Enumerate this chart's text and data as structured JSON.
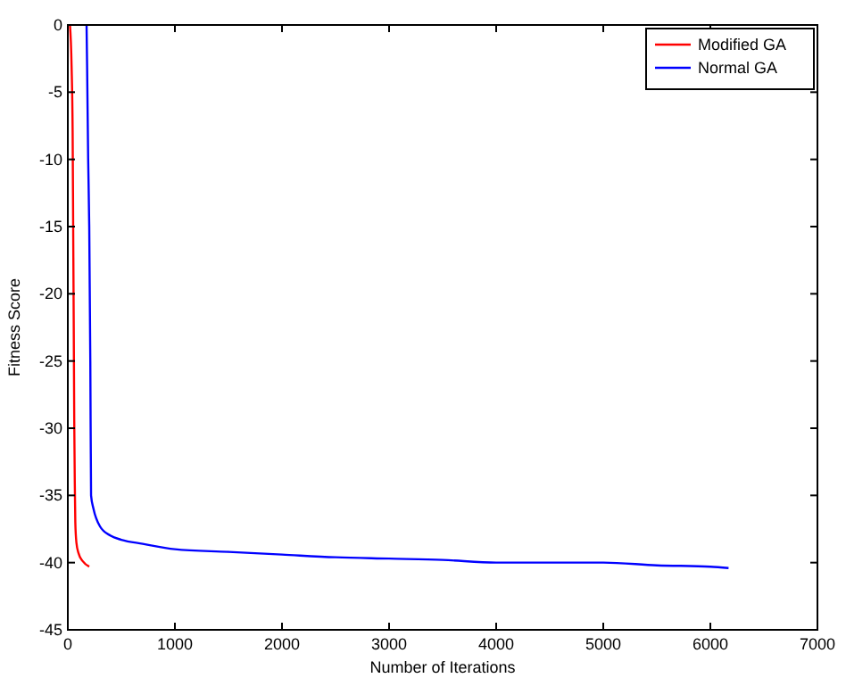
{
  "chart_data": {
    "type": "line",
    "xlabel": "Number of Iterations",
    "ylabel": "Fitness Score",
    "xlim": [
      0,
      7000
    ],
    "ylim": [
      -45,
      0
    ],
    "xticks": [
      0,
      1000,
      2000,
      3000,
      4000,
      5000,
      6000,
      7000
    ],
    "yticks": [
      -45,
      -40,
      -35,
      -30,
      -25,
      -20,
      -15,
      -10,
      -5,
      0
    ],
    "grid": false,
    "legend": "top right",
    "marker": "none",
    "line_style": "solid",
    "series": [
      {
        "name": "Modified GA",
        "color": "#ff0000",
        "x": [
          20,
          35,
          45,
          50,
          55,
          60,
          65,
          70,
          80,
          100,
          140,
          200
        ],
        "values": [
          0,
          -3,
          -8,
          -15,
          -22,
          -29.5,
          -34,
          -37,
          -38.5,
          -39.3,
          -39.9,
          -40.3
        ]
      },
      {
        "name": "Normal GA",
        "color": "#0000ff",
        "x": [
          175,
          180,
          190,
          200,
          210,
          217,
          240,
          300,
          400,
          500,
          700,
          1000,
          1500,
          2000,
          2500,
          3000,
          3500,
          4000,
          5000,
          5500,
          6000,
          6170
        ],
        "values": [
          0,
          -3,
          -10,
          -15,
          -25,
          -35,
          -36,
          -37.3,
          -38,
          -38.3,
          -38.6,
          -39,
          -39.2,
          -39.4,
          -39.6,
          -39.7,
          -39.8,
          -40,
          -40,
          -40.2,
          -40.3,
          -40.4
        ]
      }
    ]
  }
}
